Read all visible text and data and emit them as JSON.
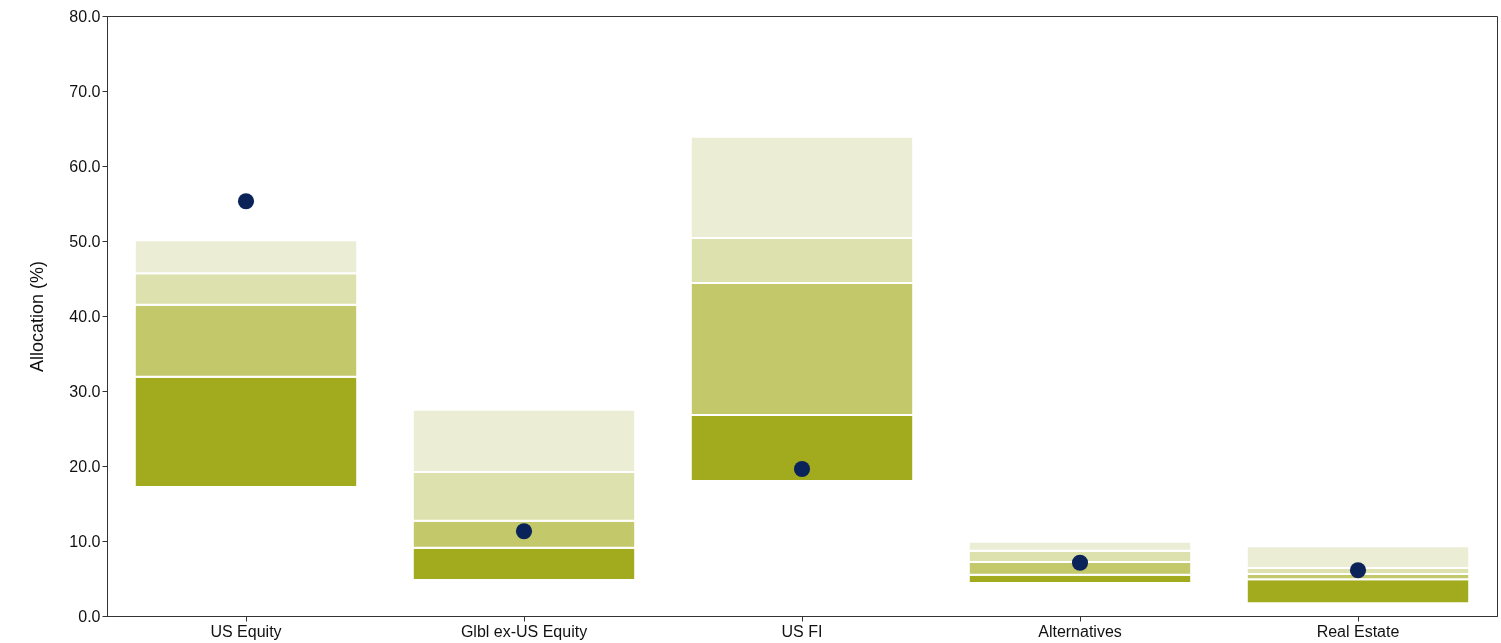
{
  "chart_data": {
    "type": "bar",
    "ylabel": "Allocation (%)",
    "categories": [
      "US Equity",
      "Glbl ex-US Equity",
      "US FI",
      "Alternatives",
      "Real Estate"
    ],
    "series": [
      {
        "color": "#a2ab1d",
        "base": [
          17.2,
          4.8,
          18.0,
          4.4,
          1.7
        ],
        "values": [
          14.7,
          4.3,
          8.8,
          1.1,
          3.2
        ]
      },
      {
        "color": "#c3c86a",
        "base": [
          31.9,
          9.1,
          26.8,
          5.5,
          4.9
        ],
        "values": [
          9.6,
          3.6,
          17.6,
          1.7,
          0.7
        ]
      },
      {
        "color": "#dde1ad",
        "base": [
          41.5,
          12.7,
          44.4,
          7.2,
          5.6
        ],
        "values": [
          4.2,
          6.5,
          6.0,
          1.5,
          0.8
        ]
      },
      {
        "color": "#ebeed5",
        "base": [
          45.7,
          19.2,
          50.4,
          8.7,
          6.4
        ],
        "values": [
          4.4,
          8.3,
          13.5,
          1.2,
          2.9
        ]
      },
      {
        "type": "scatter",
        "color": "#0a2459",
        "marker": "circle",
        "x": [
          "US Equity",
          "Glbl ex-US Equity",
          "US FI",
          "Alternatives",
          "Real Estate"
        ],
        "values": [
          55.3,
          11.3,
          19.6,
          7.1,
          6.1
        ]
      }
    ],
    "ylim": [
      0,
      80
    ],
    "yticks": [
      {
        "value": 0,
        "label": "0.0"
      },
      {
        "value": 10,
        "label": "10.0"
      },
      {
        "value": 20,
        "label": "20.0"
      },
      {
        "value": 30,
        "label": "30.0"
      },
      {
        "value": 40,
        "label": "40.0"
      },
      {
        "value": 50,
        "label": "50.0"
      },
      {
        "value": 60,
        "label": "60.0"
      },
      {
        "value": 70,
        "label": "70.0"
      },
      {
        "value": 80,
        "label": "80.0"
      }
    ],
    "grid": false,
    "legend": false
  }
}
